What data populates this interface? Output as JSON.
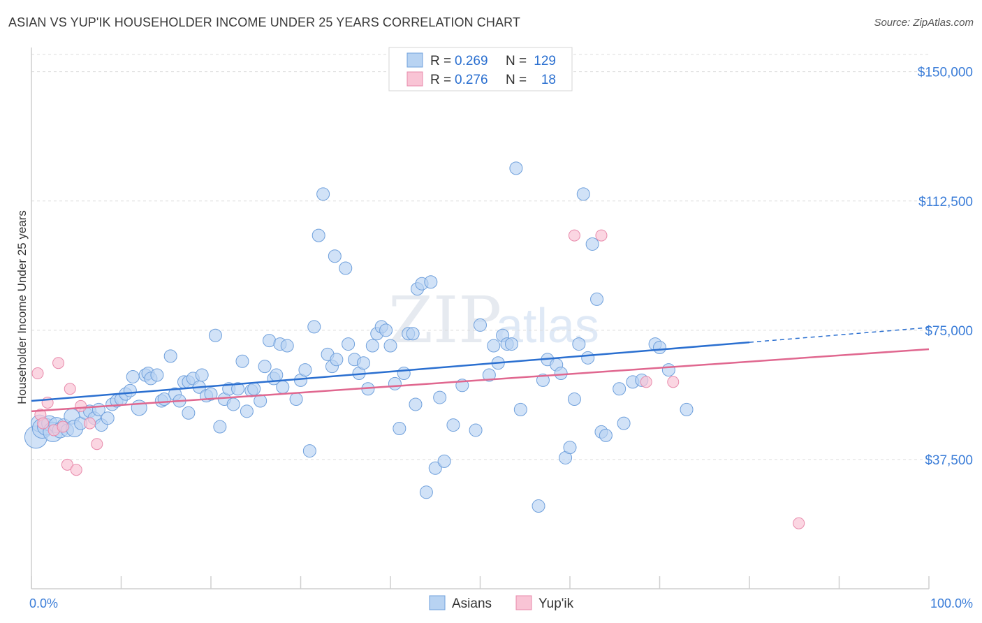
{
  "header": {
    "title": "ASIAN VS YUP'IK HOUSEHOLDER INCOME UNDER 25 YEARS CORRELATION CHART",
    "source": "Source: ZipAtlas.com"
  },
  "watermark": {
    "zip": "ZIP",
    "atlas": "atlas"
  },
  "colors": {
    "asian_fill": "#b8d3f2",
    "asian_stroke": "#6fa0dc",
    "asian_line": "#2a6fd0",
    "yupik_fill": "#f9c4d5",
    "yupik_stroke": "#e88aab",
    "yupik_line": "#e0678f",
    "tick_text": "#3b7dd8",
    "grid": "#dcdcdc"
  },
  "legend": {
    "rows": [
      {
        "r_label": "R =",
        "r_value": "0.269",
        "n_label": "N =",
        "n_value": "129"
      },
      {
        "r_label": "R =",
        "r_value": "0.276",
        "n_label": "N =",
        "n_value": "18"
      }
    ]
  },
  "chart_data": {
    "type": "scatter",
    "title": "ASIAN VS YUP'IK HOUSEHOLDER INCOME UNDER 25 YEARS CORRELATION CHART",
    "xlabel": "",
    "ylabel": "Householder Income Under 25 years",
    "xlim": [
      0,
      100
    ],
    "ylim": [
      0,
      155000
    ],
    "x_tick_labels": [
      "0.0%",
      "100.0%"
    ],
    "y_ticks": [
      37500,
      75000,
      112500,
      150000
    ],
    "y_tick_labels": [
      "$37,500",
      "$75,000",
      "$112,500",
      "$150,000"
    ],
    "grid": true,
    "legend_position": "top-center",
    "series": [
      {
        "name": "Asians",
        "trend": {
          "x0": 0,
          "y0": 54500,
          "x1": 80,
          "y1": 71500,
          "dashed_to_x": 100,
          "dashed_to_y": 75800
        },
        "points": [
          [
            0.5,
            44000,
            16
          ],
          [
            0.9,
            48000,
            12
          ],
          [
            1.2,
            46500,
            14
          ],
          [
            1.6,
            47000,
            12
          ],
          [
            2.0,
            48000,
            11
          ],
          [
            2.4,
            45500,
            14
          ],
          [
            2.8,
            47500,
            11
          ],
          [
            3.2,
            46000,
            11
          ],
          [
            3.6,
            47500,
            9
          ],
          [
            4.0,
            46000,
            9
          ],
          [
            4.5,
            50000,
            11
          ],
          [
            4.8,
            46500,
            12
          ],
          [
            5.5,
            48000,
            9
          ],
          [
            6.0,
            51000,
            9
          ],
          [
            6.5,
            51500,
            9
          ],
          [
            7.0,
            49500,
            9
          ],
          [
            7.5,
            52000,
            9
          ],
          [
            7.8,
            47500,
            9
          ],
          [
            8.5,
            49500,
            9
          ],
          [
            9.0,
            53500,
            9
          ],
          [
            9.5,
            54500,
            9
          ],
          [
            10.0,
            55000,
            9
          ],
          [
            10.5,
            56500,
            9
          ],
          [
            11.0,
            57500,
            9
          ],
          [
            11.3,
            61500,
            9
          ],
          [
            12.0,
            52500,
            11
          ],
          [
            12.7,
            62000,
            9
          ],
          [
            13.0,
            62500,
            9
          ],
          [
            13.3,
            61000,
            9
          ],
          [
            14.0,
            62000,
            9
          ],
          [
            14.5,
            54500,
            9
          ],
          [
            14.8,
            55000,
            9
          ],
          [
            15.5,
            67500,
            9
          ],
          [
            16.0,
            56500,
            9
          ],
          [
            16.5,
            54500,
            9
          ],
          [
            17.0,
            60000,
            9
          ],
          [
            17.5,
            60000,
            9
          ],
          [
            17.5,
            51000,
            9
          ],
          [
            18.0,
            61000,
            9
          ],
          [
            18.7,
            58500,
            9
          ],
          [
            19.0,
            62000,
            9
          ],
          [
            19.5,
            56000,
            9
          ],
          [
            20.0,
            56500,
            9
          ],
          [
            20.5,
            73500,
            9
          ],
          [
            21.0,
            47000,
            9
          ],
          [
            21.5,
            55000,
            9
          ],
          [
            22.0,
            58000,
            9
          ],
          [
            22.5,
            53500,
            9
          ],
          [
            23.0,
            58000,
            9
          ],
          [
            23.5,
            66000,
            9
          ],
          [
            24.0,
            51500,
            9
          ],
          [
            24.5,
            57500,
            9
          ],
          [
            24.8,
            58000,
            9
          ],
          [
            25.5,
            54500,
            9
          ],
          [
            26.0,
            64500,
            9
          ],
          [
            26.5,
            72000,
            9
          ],
          [
            27.0,
            61000,
            9
          ],
          [
            27.3,
            62000,
            9
          ],
          [
            27.7,
            71000,
            9
          ],
          [
            28.0,
            58500,
            9
          ],
          [
            28.5,
            70500,
            9
          ],
          [
            29.5,
            55000,
            9
          ],
          [
            30.0,
            60500,
            9
          ],
          [
            30.5,
            63500,
            9
          ],
          [
            31.0,
            40000,
            9
          ],
          [
            31.5,
            76000,
            9
          ],
          [
            32.0,
            102500,
            9
          ],
          [
            32.5,
            114500,
            9
          ],
          [
            33.0,
            68000,
            9
          ],
          [
            33.5,
            64500,
            9
          ],
          [
            33.8,
            96500,
            9
          ],
          [
            34.0,
            66500,
            9
          ],
          [
            35.0,
            93000,
            9
          ],
          [
            35.3,
            71000,
            9
          ],
          [
            36.0,
            66500,
            9
          ],
          [
            36.5,
            62500,
            9
          ],
          [
            37.0,
            65500,
            9
          ],
          [
            37.5,
            58000,
            9
          ],
          [
            38.0,
            70500,
            9
          ],
          [
            38.5,
            74000,
            9
          ],
          [
            39.0,
            76000,
            9
          ],
          [
            39.5,
            75000,
            9
          ],
          [
            40.0,
            70500,
            9
          ],
          [
            40.5,
            59500,
            9
          ],
          [
            41.0,
            46500,
            9
          ],
          [
            41.5,
            62500,
            9
          ],
          [
            42.0,
            74000,
            9
          ],
          [
            42.5,
            74000,
            9
          ],
          [
            42.8,
            53500,
            9
          ],
          [
            43.0,
            87000,
            9
          ],
          [
            43.5,
            88500,
            9
          ],
          [
            44.0,
            28000,
            9
          ],
          [
            44.5,
            89000,
            9
          ],
          [
            45.0,
            35000,
            9
          ],
          [
            45.5,
            55500,
            9
          ],
          [
            46.0,
            37000,
            9
          ],
          [
            47.0,
            47500,
            9
          ],
          [
            48.0,
            59000,
            9
          ],
          [
            49.5,
            46000,
            9
          ],
          [
            50.0,
            76500,
            9
          ],
          [
            51.0,
            62000,
            9
          ],
          [
            51.5,
            70500,
            9
          ],
          [
            52.0,
            65500,
            9
          ],
          [
            52.5,
            73500,
            9
          ],
          [
            53.0,
            71000,
            9
          ],
          [
            53.5,
            71000,
            9
          ],
          [
            54.0,
            122000,
            9
          ],
          [
            54.5,
            52000,
            9
          ],
          [
            56.5,
            24000,
            9
          ],
          [
            57.0,
            60500,
            9
          ],
          [
            57.5,
            66500,
            9
          ],
          [
            58.5,
            65000,
            9
          ],
          [
            59.0,
            62500,
            9
          ],
          [
            59.5,
            38000,
            9
          ],
          [
            60.0,
            41000,
            9
          ],
          [
            60.5,
            55000,
            9
          ],
          [
            61.0,
            71000,
            9
          ],
          [
            61.5,
            114500,
            9
          ],
          [
            62.0,
            67000,
            9
          ],
          [
            62.5,
            100000,
            9
          ],
          [
            63.0,
            84000,
            9
          ],
          [
            63.5,
            45500,
            9
          ],
          [
            64.0,
            44500,
            9
          ],
          [
            65.5,
            58000,
            9
          ],
          [
            66.0,
            48000,
            9
          ],
          [
            67.0,
            60000,
            9
          ],
          [
            68.0,
            60500,
            9
          ],
          [
            69.5,
            71000,
            9
          ],
          [
            70.0,
            70000,
            9
          ],
          [
            71.0,
            63500,
            9
          ],
          [
            73.0,
            52000,
            9
          ]
        ]
      },
      {
        "name": "Yup'ik",
        "trend": {
          "x0": 0,
          "y0": 51500,
          "x1": 100,
          "y1": 69500
        },
        "points": [
          [
            0.7,
            62500
          ],
          [
            1.0,
            50500
          ],
          [
            1.3,
            48000
          ],
          [
            1.8,
            54000
          ],
          [
            2.5,
            46000
          ],
          [
            3.0,
            65500
          ],
          [
            3.5,
            47000
          ],
          [
            4.0,
            36000
          ],
          [
            4.3,
            58000
          ],
          [
            5.0,
            34500
          ],
          [
            5.5,
            53000
          ],
          [
            6.5,
            48000
          ],
          [
            7.3,
            42000
          ],
          [
            60.5,
            102500
          ],
          [
            63.5,
            102500
          ],
          [
            68.5,
            60000
          ],
          [
            71.5,
            60000
          ],
          [
            85.5,
            19000
          ]
        ]
      }
    ]
  },
  "bottom_legend": {
    "asians_label": "Asians",
    "yupik_label": "Yup'ik"
  }
}
